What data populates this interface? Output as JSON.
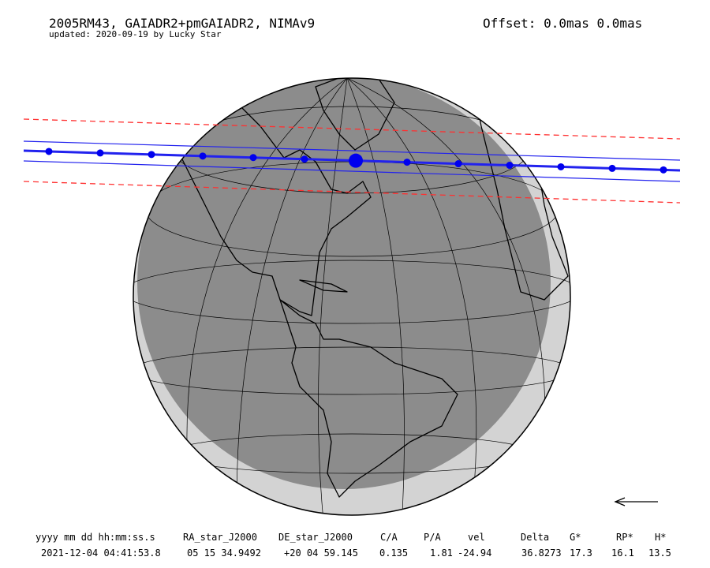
{
  "header": {
    "title": "2005RM43, GAIADR2+pmGAIADR2, NIMAv9",
    "subtitle": "updated: 2020-09-19 by Lucky Star",
    "offset": "Offset: 0.0mas 0.0mas"
  },
  "table": {
    "header": [
      "yyyy mm dd hh:mm:ss.s",
      "RA_star_J2000",
      "DE_star_J2000",
      "C/A",
      "P/A",
      "vel",
      "Delta",
      "G*",
      "RP*",
      "H*"
    ],
    "rows": [
      [
        "2021-12-04 04:41:53.8",
        "05 15 34.9492",
        "+20 04 59.145",
        "0.135",
        "1.81",
        "-24.94",
        "36.8273",
        "17.3",
        "16.1",
        "13.5"
      ]
    ]
  }
}
